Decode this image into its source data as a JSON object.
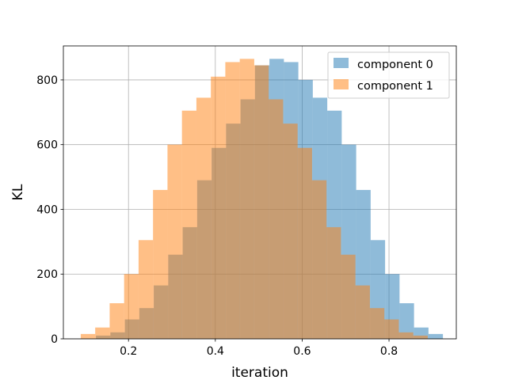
{
  "chart_data": {
    "type": "bar",
    "title": "",
    "xlabel": "iteration",
    "ylabel": "KL",
    "xlim": [
      0.05,
      0.955
    ],
    "ylim": [
      0,
      905
    ],
    "xticks": [
      0.2,
      0.4,
      0.6,
      0.8
    ],
    "xtick_labels": [
      "0.2",
      "0.4",
      "0.6",
      "0.8"
    ],
    "yticks": [
      0,
      200,
      400,
      600,
      800
    ],
    "ytick_labels": [
      "0",
      "200",
      "400",
      "600",
      "800"
    ],
    "grid": true,
    "legend": {
      "position": "top-right"
    },
    "bin_width": 0.0333,
    "series": [
      {
        "name": "component 0",
        "color": "#1f77b4",
        "opacity": 0.5,
        "bin_start": 0.125,
        "counts": [
          10,
          20,
          60,
          95,
          165,
          260,
          345,
          490,
          590,
          665,
          740,
          845,
          865,
          855,
          800,
          745,
          705,
          600,
          460,
          305,
          200,
          110,
          35,
          15
        ]
      },
      {
        "name": "component 1",
        "color": "#ff7f0e",
        "opacity": 0.5,
        "bin_start": 0.09,
        "counts": [
          15,
          35,
          110,
          200,
          305,
          460,
          600,
          705,
          745,
          810,
          855,
          865,
          845,
          740,
          665,
          590,
          490,
          345,
          260,
          165,
          95,
          60,
          20,
          10
        ]
      }
    ]
  }
}
